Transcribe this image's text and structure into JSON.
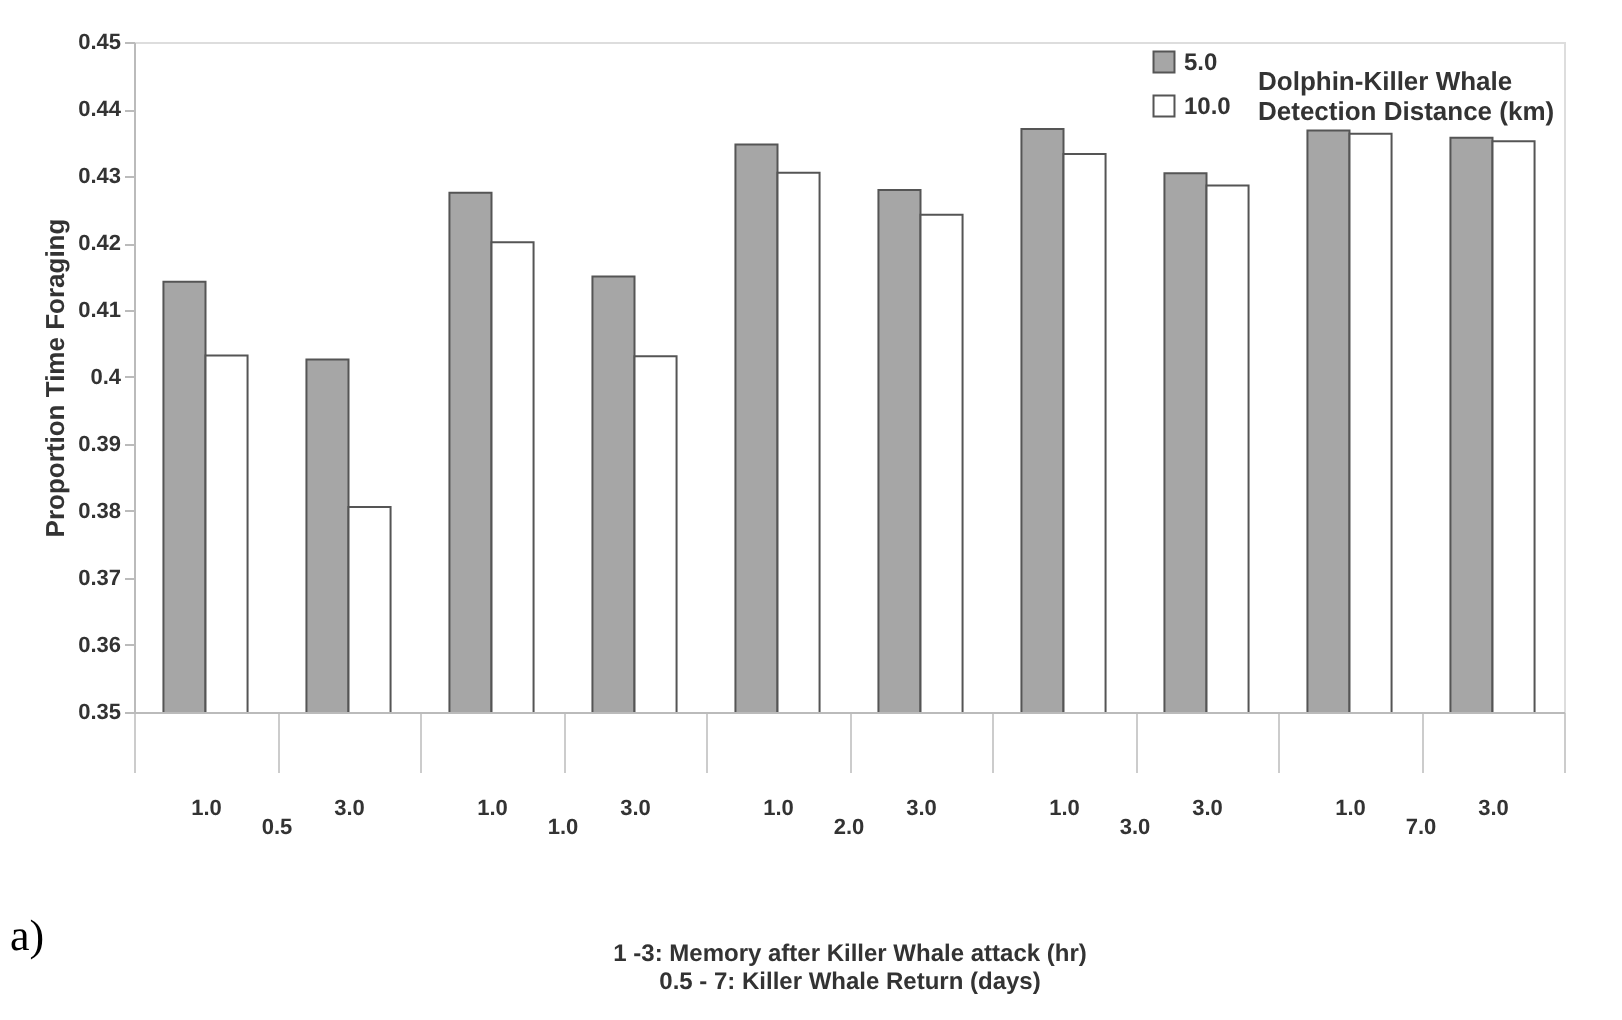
{
  "chart_data": {
    "type": "bar",
    "ylabel": "Proportion Time Foraging",
    "xlabel": "1 -3: Memory after Killer Whale attack  (hr)\n0.5 - 7: Killer Whale Return (days)",
    "legend_title": "Dolphin-Killer Whale Detection Distance (km)",
    "legend": "top right",
    "categories": [
      "1.0",
      "3.0",
      "1.0",
      "3.0",
      "1.0",
      "3.0",
      "1.0",
      "3.0",
      "1.0",
      "3.0"
    ],
    "series": [
      {
        "name": "5.0",
        "color": "#a6a6a6",
        "values": [
          0.4142,
          0.4026,
          0.4275,
          0.415,
          0.4347,
          0.4279,
          0.437,
          0.4304,
          0.4368,
          0.4357
        ]
      },
      {
        "name": "10.0",
        "color": "#ffffff",
        "values": [
          0.4032,
          0.3806,
          0.4201,
          0.4031,
          0.4305,
          0.4242,
          0.4333,
          0.4286,
          0.4363,
          0.4352
        ]
      }
    ],
    "ylim": [
      0.35,
      0.45
    ],
    "yticks": [
      0.35,
      0.36,
      0.37,
      0.38,
      0.39,
      0.4,
      0.41,
      0.42,
      0.43,
      0.44,
      0.45
    ],
    "grid": false,
    "annotations": [
      "0.5",
      "1.0",
      "2.0",
      "3.0",
      "7.0",
      "a)"
    ]
  }
}
